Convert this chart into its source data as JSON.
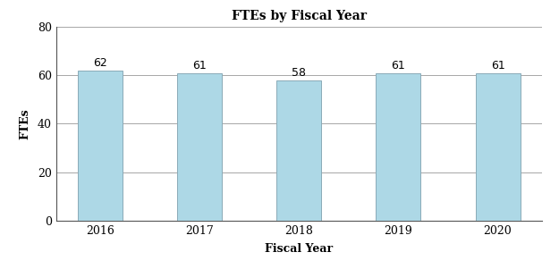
{
  "categories": [
    "2016",
    "2017",
    "2018",
    "2019",
    "2020"
  ],
  "values": [
    62,
    61,
    58,
    61,
    61
  ],
  "bar_color": "#add8e6",
  "bar_edgecolor": "#8aabb8",
  "title": "FTEs by Fiscal Year",
  "xlabel": "Fiscal Year",
  "ylabel": "FTEs",
  "ylim": [
    0,
    80
  ],
  "yticks": [
    0,
    20,
    40,
    60,
    80
  ],
  "title_fontsize": 10,
  "axis_label_fontsize": 9,
  "tick_fontsize": 9,
  "annotation_fontsize": 9,
  "grid_color": "#999999",
  "spine_color": "#555555",
  "background_color": "#ffffff",
  "bar_width": 0.45
}
